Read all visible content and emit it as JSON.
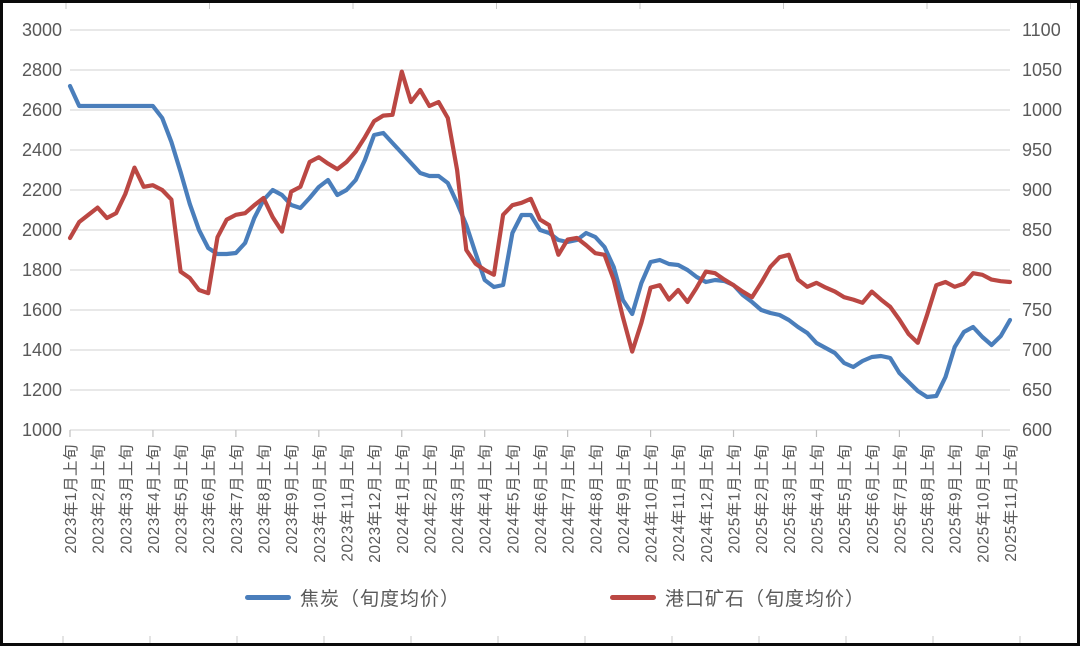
{
  "chart_style": {
    "background": "#ffffff",
    "frame_border_color": "#0a0a0a",
    "gridline_color": "#d9d9d9",
    "tick_mark_color": "#bfbfbf",
    "edge_tick_color": "#c9c9c9",
    "axis_text_color": "#595959",
    "legend_text_color": "#595959"
  },
  "chart_data": {
    "type": "line",
    "title": "",
    "xlabel": "",
    "ylabel_left": "",
    "ylabel_right": "",
    "grid": "horizontal",
    "legend_position": "bottom",
    "points_per_label": 3,
    "point_frequency": "every 10 days (旬)",
    "x_tick_labels": [
      "2023年1月上旬",
      "2023年2月上旬",
      "2023年3月上旬",
      "2023年4月上旬",
      "2023年5月上旬",
      "2023年6月上旬",
      "2023年7月上旬",
      "2023年8月上旬",
      "2023年9月上旬",
      "2023年10月上旬",
      "2023年11月上旬",
      "2023年12月上旬",
      "2024年1月上旬",
      "2024年2月上旬",
      "2024年3月上旬",
      "2024年4月上旬",
      "2024年5月上旬",
      "2024年6月上旬",
      "2024年7月上旬",
      "2024年8月上旬",
      "2024年9月上旬",
      "2024年10月上旬",
      "2024年11月上旬",
      "2024年12月上旬",
      "2025年1月上旬",
      "2025年2月上旬",
      "2025年3月上旬",
      "2025年4月上旬",
      "2025年5月上旬",
      "2025年6月上旬",
      "2025年7月上旬",
      "2025年8月上旬",
      "2025年9月上旬",
      "2025年10月上旬",
      "2025年11月上旬"
    ],
    "left_axis": {
      "min": 1000,
      "max": 3000,
      "step": 200,
      "tick_labels": [
        "3000",
        "2800",
        "2600",
        "2400",
        "2200",
        "2000",
        "1800",
        "1600",
        "1400",
        "1200",
        "1000"
      ]
    },
    "right_axis": {
      "min": 600,
      "max": 1100,
      "step": 50,
      "tick_labels": [
        "1100",
        "1050",
        "1000",
        "950",
        "900",
        "850",
        "800",
        "750",
        "700",
        "650",
        "600"
      ]
    },
    "series": [
      {
        "name": "焦炭（旬度均价）",
        "axis": "left",
        "color": "#4a7ebb",
        "values": [
          2720,
          2620,
          2620,
          2620,
          2620,
          2620,
          2620,
          2620,
          2620,
          2620,
          2560,
          2440,
          2290,
          2130,
          2000,
          1910,
          1880,
          1880,
          1885,
          1935,
          2060,
          2150,
          2200,
          2175,
          2125,
          2110,
          2160,
          2215,
          2250,
          2175,
          2200,
          2250,
          2350,
          2475,
          2485,
          2435,
          2385,
          2335,
          2285,
          2270,
          2270,
          2235,
          2135,
          2025,
          1885,
          1750,
          1715,
          1725,
          1985,
          2075,
          2075,
          2000,
          1985,
          1950,
          1940,
          1950,
          1985,
          1965,
          1915,
          1815,
          1650,
          1580,
          1735,
          1840,
          1850,
          1830,
          1825,
          1800,
          1765,
          1740,
          1750,
          1745,
          1725,
          1675,
          1640,
          1600,
          1585,
          1575,
          1550,
          1515,
          1485,
          1435,
          1410,
          1385,
          1335,
          1315,
          1345,
          1365,
          1370,
          1360,
          1285,
          1240,
          1195,
          1165,
          1170,
          1265,
          1415,
          1490,
          1515,
          1465,
          1425,
          1470,
          1550
        ]
      },
      {
        "name": "港口矿石（旬度均价）",
        "axis": "right",
        "color": "#bb4743",
        "values": [
          840,
          860,
          869,
          878,
          865,
          871,
          895,
          928,
          904,
          906,
          900,
          888,
          798,
          790,
          775,
          771,
          841,
          863,
          869,
          871,
          881,
          890,
          866,
          848,
          898,
          904,
          935,
          941,
          933,
          926,
          935,
          948,
          966,
          986,
          993,
          994,
          1048,
          1010,
          1025,
          1005,
          1010,
          990,
          925,
          825,
          808,
          800,
          794,
          869,
          881,
          884,
          889,
          863,
          856,
          819,
          838,
          840,
          831,
          821,
          819,
          788,
          741,
          698,
          734,
          778,
          781,
          763,
          775,
          760,
          778,
          798,
          796,
          788,
          781,
          773,
          766,
          784,
          804,
          816,
          819,
          788,
          779,
          784,
          778,
          773,
          766,
          763,
          759,
          773,
          763,
          754,
          738,
          720,
          709,
          744,
          781,
          785,
          779,
          783,
          796,
          794,
          788,
          786,
          785
        ]
      }
    ]
  },
  "legend": {
    "items": [
      {
        "label": "焦炭（旬度均价）"
      },
      {
        "label": "港口矿石（旬度均价）"
      }
    ]
  }
}
